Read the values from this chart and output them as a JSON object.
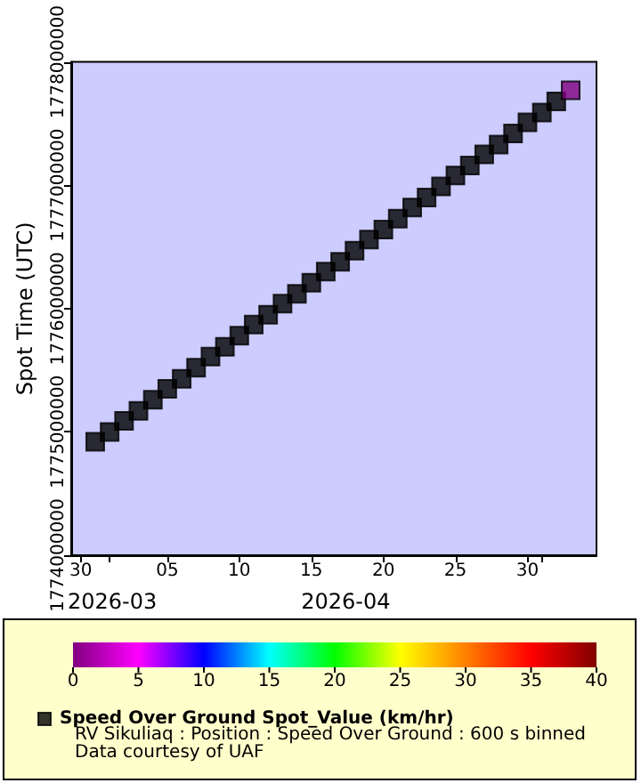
{
  "chart_data": {
    "type": "scatter",
    "ylabel": "Spot Time (UTC)",
    "x": [
      "2026-03-31",
      "2026-04-01",
      "2026-04-02",
      "2026-04-03",
      "2026-04-04",
      "2026-04-05",
      "2026-04-06",
      "2026-04-07",
      "2026-04-08",
      "2026-04-09",
      "2026-04-10",
      "2026-04-11",
      "2026-04-12",
      "2026-04-13",
      "2026-04-14",
      "2026-04-15",
      "2026-04-16",
      "2026-04-17",
      "2026-04-18",
      "2026-04-19",
      "2026-04-20",
      "2026-04-21",
      "2026-04-22",
      "2026-04-23",
      "2026-04-24",
      "2026-04-25",
      "2026-04-26",
      "2026-04-27",
      "2026-04-28",
      "2026-04-29",
      "2026-04-30",
      "2026-05-01",
      "2026-05-02",
      "2026-05-03"
    ],
    "series": [
      {
        "name": "Speed Over Ground Spot_Value (km/hr)",
        "color": "#000000",
        "values": [
          1774920000,
          1775000000,
          1775090000,
          1775170000,
          1775260000,
          1775350000,
          1775430000,
          1775520000,
          1775610000,
          1775690000,
          1775780000,
          1775870000,
          1775950000,
          1776040000,
          1776120000,
          1776210000,
          1776300000,
          1776380000,
          1776470000,
          1776560000,
          1776640000,
          1776730000,
          1776820000,
          1776900000,
          1776990000,
          1777080000,
          1777160000,
          1777250000,
          1777330000,
          1777420000,
          1777510000,
          1777590000,
          1777680000,
          1777770000
        ],
        "cvalues": [
          null,
          null,
          null,
          null,
          null,
          null,
          null,
          null,
          null,
          null,
          null,
          null,
          null,
          null,
          null,
          null,
          null,
          null,
          null,
          null,
          null,
          null,
          null,
          null,
          null,
          null,
          null,
          null,
          null,
          null,
          null,
          null,
          null,
          0
        ]
      }
    ],
    "marker": "square",
    "grid": false,
    "legend": "bottom",
    "xlim": [
      "2026-03-29T08:00",
      "2026-05-04T19:00"
    ],
    "xticks": [
      {
        "value": "2026-03-30",
        "label": "30"
      },
      {
        "value": "2026-04-01",
        "label": null
      },
      {
        "value": "2026-04-05",
        "label": "05"
      },
      {
        "value": "2026-04-10",
        "label": "10"
      },
      {
        "value": "2026-04-15",
        "label": "15"
      },
      {
        "value": "2026-04-20",
        "label": "20"
      },
      {
        "value": "2026-04-25",
        "label": "25"
      },
      {
        "value": "2026-04-30",
        "label": "30"
      },
      {
        "value": "2026-05-01",
        "label": null
      }
    ],
    "ylim": [
      1774000000,
      1778000000
    ],
    "yticks": [
      1774000000,
      1775000000,
      1776000000,
      1777000000,
      1778000000
    ],
    "clim": [
      0,
      40
    ],
    "cticks": [
      0,
      5,
      10,
      15,
      20,
      25,
      30,
      35,
      40
    ],
    "annotations": [
      "2026-03",
      "2026-04",
      "RV Sikuliaq : Position : Speed Over Ground : 600 s binned",
      "Data courtesy of UAF"
    ]
  }
}
